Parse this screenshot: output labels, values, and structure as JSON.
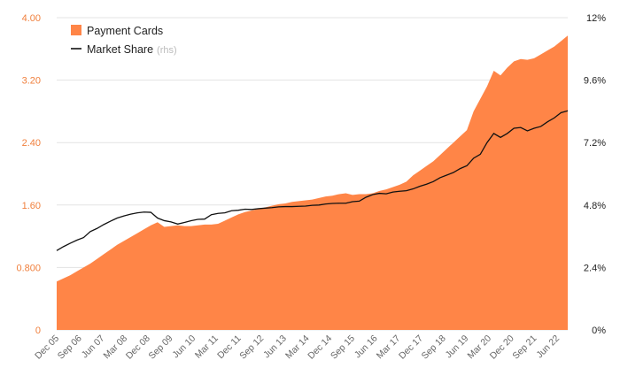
{
  "chart_data": {
    "type": "area",
    "left_axis": {
      "ylim": [
        0,
        4.0
      ],
      "ticks": [
        0,
        0.8,
        1.6,
        2.4,
        3.2,
        4.0
      ],
      "tick_labels": [
        "0",
        "0.800",
        "1.60",
        "2.40",
        "3.20",
        "4.00"
      ],
      "color": "#f07f3c"
    },
    "right_axis": {
      "ylim": [
        0,
        12
      ],
      "ticks": [
        0,
        2.4,
        4.8,
        7.2,
        9.6,
        12
      ],
      "tick_labels": [
        "0%",
        "2.4%",
        "4.8%",
        "7.2%",
        "9.6%",
        "12%"
      ]
    },
    "x_ticks": [
      "Dec 05",
      "Sep 06",
      "Jun 07",
      "Mar 08",
      "Dec 08",
      "Sep 09",
      "Jun 10",
      "Mar 11",
      "Dec 11",
      "Sep 12",
      "Jun 13",
      "Mar 14",
      "Dec 14",
      "Sep 15",
      "Jun 16",
      "Mar 17",
      "Dec 17",
      "Sep 18",
      "Jun 19",
      "Mar 20",
      "Dec 20",
      "Sep 21",
      "Jun 22"
    ],
    "grid": true,
    "legend_position": "top-left",
    "series": [
      {
        "name": "Payment Cards",
        "type": "area",
        "axis": "left",
        "color": "#ff8547",
        "values": [
          0.62,
          0.66,
          0.7,
          0.75,
          0.8,
          0.85,
          0.91,
          0.97,
          1.03,
          1.09,
          1.14,
          1.19,
          1.24,
          1.29,
          1.34,
          1.38,
          1.32,
          1.33,
          1.34,
          1.33,
          1.33,
          1.34,
          1.35,
          1.35,
          1.36,
          1.4,
          1.44,
          1.48,
          1.51,
          1.53,
          1.55,
          1.57,
          1.59,
          1.61,
          1.62,
          1.64,
          1.65,
          1.66,
          1.67,
          1.69,
          1.71,
          1.72,
          1.74,
          1.75,
          1.73,
          1.74,
          1.74,
          1.75,
          1.78,
          1.8,
          1.83,
          1.86,
          1.9,
          1.98,
          2.04,
          2.1,
          2.16,
          2.24,
          2.32,
          2.4,
          2.48,
          2.56,
          2.8,
          2.96,
          3.12,
          3.32,
          3.26,
          3.36,
          3.44,
          3.47,
          3.46,
          3.48,
          3.53,
          3.58,
          3.63,
          3.7,
          3.77
        ]
      },
      {
        "name": "Market Share",
        "label_suffix": "(rhs)",
        "type": "line",
        "axis": "right",
        "color": "#111111",
        "values": [
          3.05,
          3.2,
          3.33,
          3.45,
          3.55,
          3.78,
          3.9,
          4.05,
          4.18,
          4.3,
          4.38,
          4.45,
          4.5,
          4.53,
          4.52,
          4.3,
          4.2,
          4.15,
          4.07,
          4.13,
          4.2,
          4.25,
          4.26,
          4.43,
          4.48,
          4.5,
          4.58,
          4.6,
          4.64,
          4.63,
          4.66,
          4.68,
          4.7,
          4.73,
          4.74,
          4.74,
          4.75,
          4.76,
          4.79,
          4.8,
          4.84,
          4.86,
          4.87,
          4.87,
          4.93,
          4.95,
          5.1,
          5.2,
          5.25,
          5.23,
          5.3,
          5.33,
          5.35,
          5.42,
          5.52,
          5.6,
          5.7,
          5.85,
          5.95,
          6.05,
          6.2,
          6.31,
          6.6,
          6.75,
          7.2,
          7.55,
          7.4,
          7.55,
          7.75,
          7.78,
          7.65,
          7.75,
          7.82,
          8.0,
          8.15,
          8.35,
          8.42
        ]
      }
    ]
  }
}
